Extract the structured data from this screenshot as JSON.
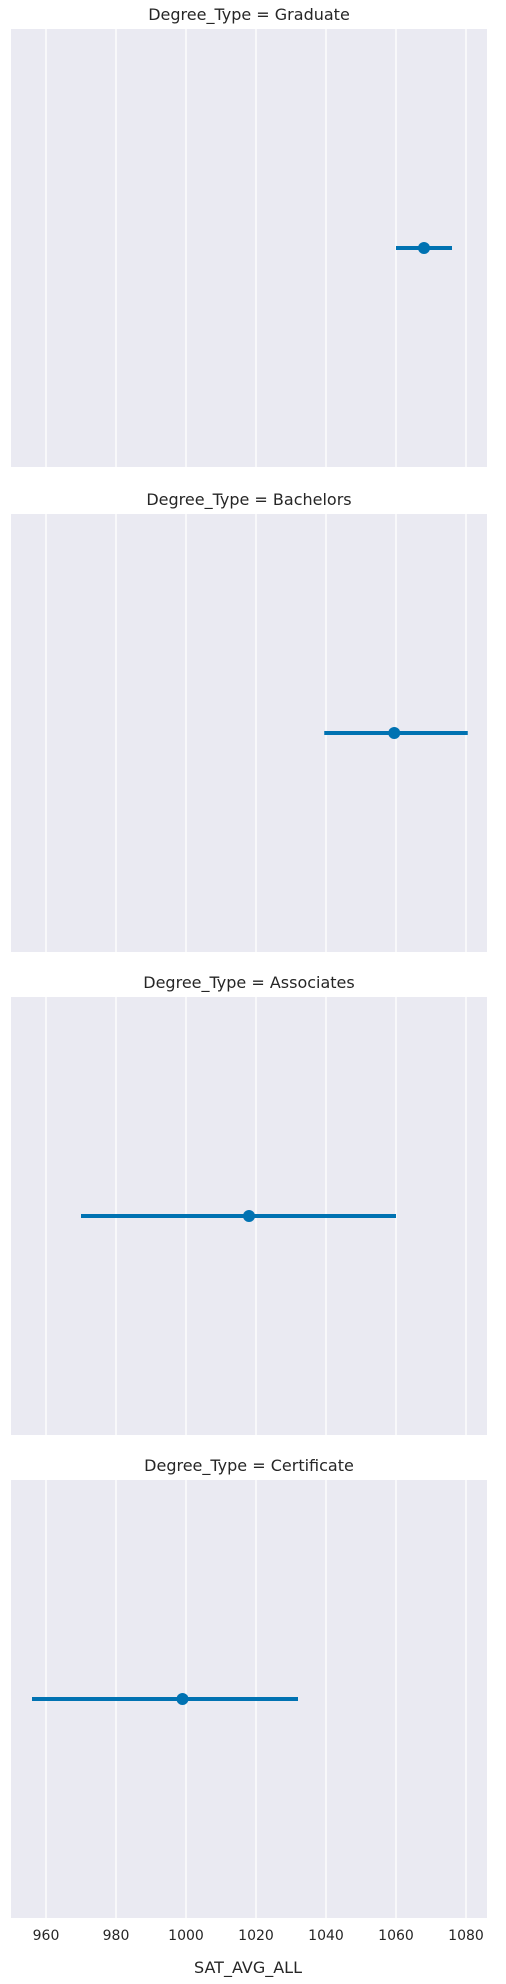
{
  "chart_data": {
    "type": "scatter",
    "style": "point estimate with confidence interval, faceted by row",
    "facet_prefix": "Degree_Type = ",
    "facets": [
      {
        "title": "Degree_Type = Graduate",
        "estimate": 1068,
        "ci": [
          1060,
          1076
        ]
      },
      {
        "title": "Degree_Type = Bachelors",
        "estimate": 1059.5,
        "ci": [
          1039.5,
          1080.5
        ]
      },
      {
        "title": "Degree_Type = Associates",
        "estimate": 1018,
        "ci": [
          970,
          1060
        ]
      },
      {
        "title": "Degree_Type = Certificate",
        "estimate": 999,
        "ci": [
          956,
          1032
        ]
      }
    ],
    "xlabel": "SAT_AVG_ALL",
    "xlim": [
      950,
      1086
    ],
    "xticks": [
      960,
      980,
      1000,
      1020,
      1040,
      1060,
      1080
    ],
    "xtick_labels": [
      "960",
      "980",
      "1000",
      "1020",
      "1040",
      "1060",
      "1080"
    ],
    "grid": true,
    "colors": {
      "point": "#0072B2",
      "panel_background": "#EAEAF2",
      "grid": "#FFFFFF"
    }
  }
}
